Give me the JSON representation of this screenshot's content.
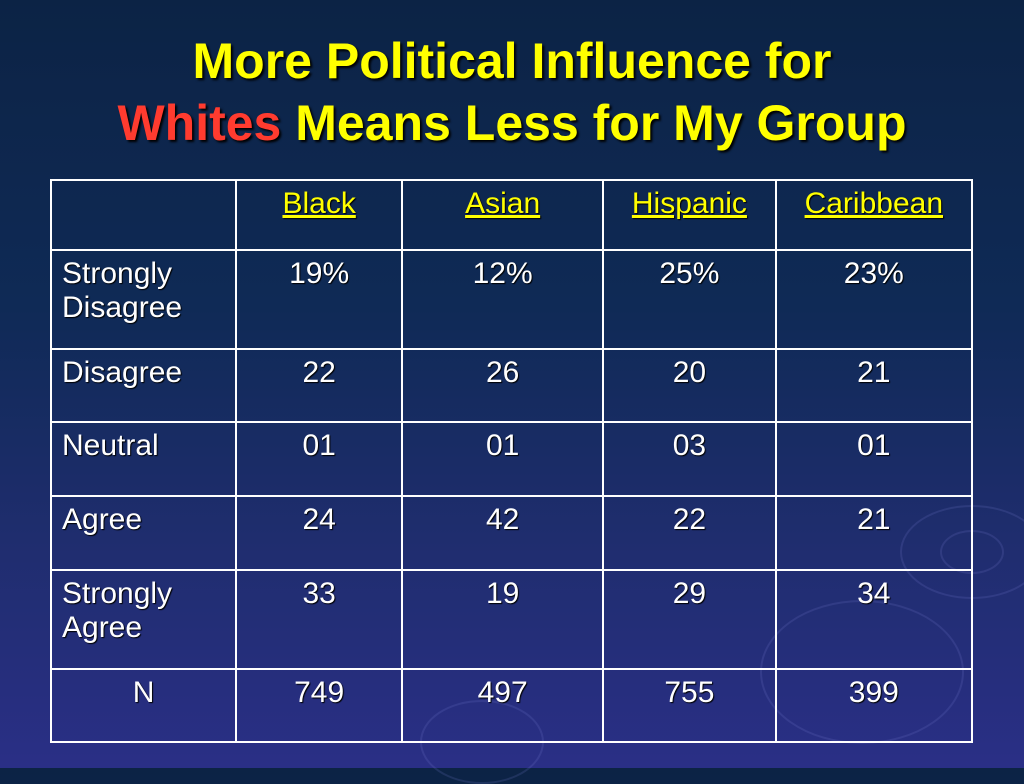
{
  "title": {
    "line1": "More Political Influence for",
    "highlight": "Whites",
    "line2_rest": "Means Less for My Group"
  },
  "table": {
    "corner": "",
    "headers": [
      "Black",
      "Asian",
      "Hispanic",
      "Caribbean"
    ],
    "rows": [
      {
        "label": "Strongly Disagree",
        "values": [
          "19%",
          "12%",
          "25%",
          "23%"
        ]
      },
      {
        "label": "Disagree",
        "values": [
          "22",
          "26",
          "20",
          "21"
        ]
      },
      {
        "label": "Neutral",
        "values": [
          "01",
          "01",
          "03",
          "01"
        ]
      },
      {
        "label": "Agree",
        "values": [
          "24",
          "42",
          "22",
          "21"
        ]
      },
      {
        "label": "Strongly Agree",
        "values": [
          "33",
          "19",
          "29",
          "34"
        ]
      },
      {
        "label": "N",
        "values": [
          "749",
          "497",
          "755",
          "399"
        ]
      }
    ]
  },
  "colors": {
    "title": "#ffff00",
    "highlight": "#ff3b2f",
    "text": "#ffffff",
    "background": "#0f2a56"
  }
}
